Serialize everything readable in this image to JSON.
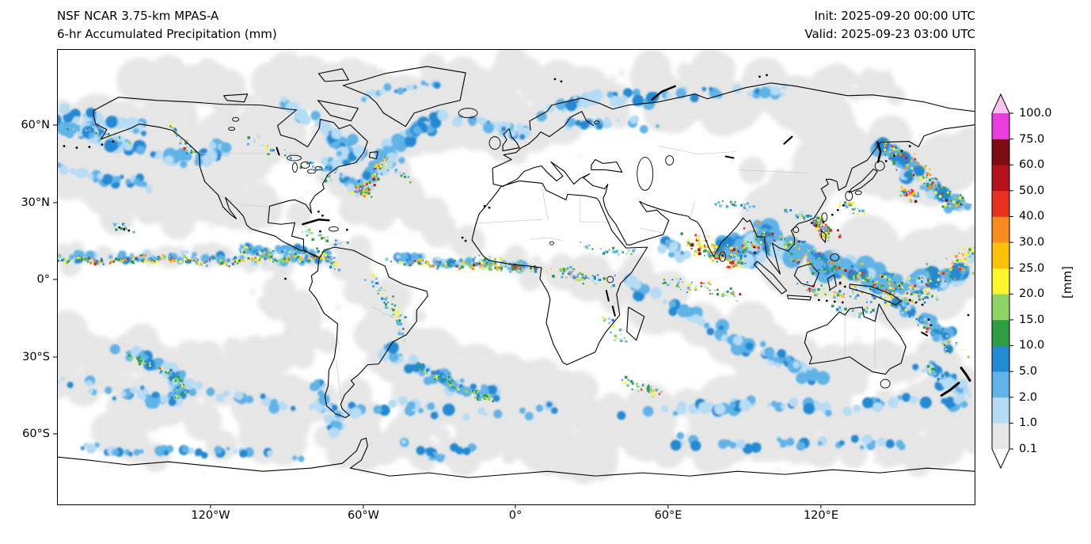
{
  "header": {
    "title_line1": "NSF NCAR 3.75-km MPAS-A",
    "title_line2": "6-hr Accumulated Precipitation (mm)",
    "init_label": "Init: 2025-09-20 00:00 UTC",
    "valid_label": "Valid: 2025-09-23 03:00 UTC"
  },
  "axes": {
    "x_ticks": [
      "120°W",
      "60°W",
      "0°",
      "60°E",
      "120°E"
    ],
    "y_ticks": [
      "60°N",
      "30°N",
      "0°",
      "30°S",
      "60°S"
    ]
  },
  "colorbar": {
    "label": "[mm]",
    "tick_labels": [
      "100.0",
      "75.0",
      "60.0",
      "50.0",
      "40.0",
      "30.0",
      "25.0",
      "20.0",
      "15.0",
      "10.0",
      "5.0",
      "2.0",
      "1.0",
      "0.1"
    ],
    "segment_colors_bottom_to_top": [
      "#e6e6e6",
      "#b5dcf4",
      "#5fb3e7",
      "#2389d2",
      "#2f9e43",
      "#8fd465",
      "#fdf52e",
      "#ffc20a",
      "#fb8b1e",
      "#e8321f",
      "#b5121b",
      "#7c0d14",
      "#ea3cdc"
    ],
    "over_color": "#f9c4ef",
    "under_color": "#ffffff"
  },
  "chart_data": {
    "type": "heatmap",
    "title": "6-hr Accumulated Precipitation (mm)",
    "model": "NSF NCAR 3.75-km MPAS-A",
    "init_time": "2025-09-20 00:00 UTC",
    "valid_time": "2025-09-23 03:00 UTC",
    "units": "mm",
    "levels_mm": [
      0.1,
      1.0,
      2.0,
      5.0,
      10.0,
      15.0,
      20.0,
      25.0,
      30.0,
      40.0,
      50.0,
      60.0,
      75.0,
      100.0
    ],
    "colors_low_to_high": [
      "#e6e6e6",
      "#b5dcf4",
      "#5fb3e7",
      "#2389d2",
      "#2f9e43",
      "#8fd465",
      "#fdf52e",
      "#ffc20a",
      "#fb8b1e",
      "#e8321f",
      "#b5121b",
      "#7c0d14",
      "#ea3cdc"
    ],
    "colorbar_extend": "both",
    "x_tick_labels": [
      "120°W",
      "60°W",
      "0°",
      "60°E",
      "120°E"
    ],
    "y_tick_labels": [
      "60°N",
      "30°N",
      "0°",
      "30°S",
      "60°S"
    ],
    "map_extent": {
      "lon": [
        -180,
        180
      ],
      "lat": [
        -90,
        90
      ]
    },
    "grid": "off",
    "legend_position": "right-colorbar",
    "description": "Global latitude-longitude map of 6-hour accumulated precipitation shaded by colorbar levels; heaviest precipitation along the ITCZ, Indian monsoon region, western Pacific warm pool, midlatitude storm tracks and tropical cyclones near the NW Atlantic, Luzon Strait and east of Japan."
  }
}
